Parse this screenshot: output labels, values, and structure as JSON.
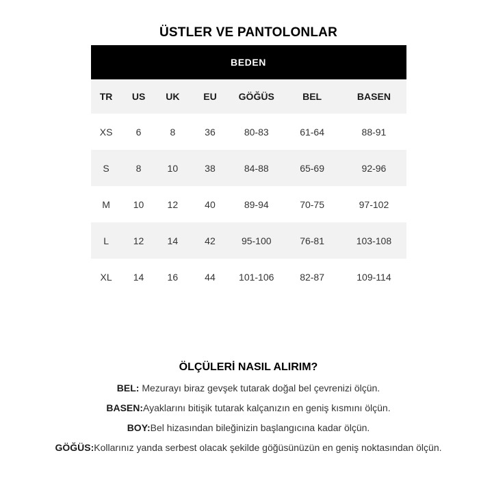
{
  "page": {
    "title": "ÜSTLER VE PANTOLONLAR"
  },
  "size_table": {
    "banner": "BEDEN",
    "columns": [
      "TR",
      "US",
      "UK",
      "EU",
      "GÖĞÜS",
      "BEL",
      "BASEN"
    ],
    "rows": [
      [
        "XS",
        "6",
        "8",
        "36",
        "80-83",
        "61-64",
        "88-91"
      ],
      [
        "S",
        "8",
        "10",
        "38",
        "84-88",
        "65-69",
        "92-96"
      ],
      [
        "M",
        "10",
        "12",
        "40",
        "89-94",
        "70-75",
        "97-102"
      ],
      [
        "L",
        "12",
        "14",
        "42",
        "95-100",
        "76-81",
        "103-108"
      ],
      [
        "XL",
        "14",
        "16",
        "44",
        "101-106",
        "82-87",
        "109-114"
      ]
    ]
  },
  "measurement_guide": {
    "heading": "ÖLÇÜLERİ NASIL ALIRIM?",
    "items": [
      {
        "label": "BEL:",
        "text": " Mezurayı biraz gevşek tutarak doğal bel çevrenizi ölçün."
      },
      {
        "label": "BASEN:",
        "text": "Ayaklarını bitişik tutarak kalçanızın en geniş kısmını ölçün."
      },
      {
        "label": "BOY:",
        "text": "Bel hizasından bileğinizin başlangıcına kadar ölçün."
      },
      {
        "label": "GÖĞÜS:",
        "text": "Kollarınız yanda serbest olacak şekilde göğüsünüzün en geniş noktasından ölçün."
      }
    ]
  },
  "colors": {
    "banner_bg": "#000000",
    "banner_text": "#ffffff",
    "alt_row_bg": "#f2f2f2",
    "body_text": "#333333"
  }
}
